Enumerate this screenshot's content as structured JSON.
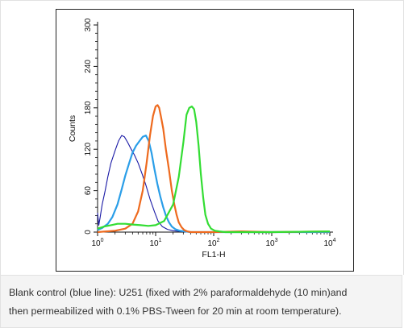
{
  "chart_data": {
    "type": "line",
    "xlabel": "FL1-H",
    "ylabel": "Counts",
    "xscale": "log",
    "xlim": [
      1,
      10000
    ],
    "ylim": [
      0,
      300
    ],
    "x_ticks": [
      {
        "base": "10",
        "exp": "0"
      },
      {
        "base": "10",
        "exp": "1"
      },
      {
        "base": "10",
        "exp": "2"
      },
      {
        "base": "10",
        "exp": "3"
      },
      {
        "base": "10",
        "exp": "4"
      }
    ],
    "y_ticks": [
      "0",
      "60",
      "120",
      "180",
      "240",
      "300"
    ],
    "y_tick_values": [
      0,
      60,
      120,
      180,
      240,
      300
    ],
    "grid": false,
    "series": [
      {
        "color": "#1a1aa6",
        "x": [
          1.0,
          1.05,
          1.1,
          1.2,
          1.35,
          1.5,
          1.7,
          2.0,
          2.3,
          2.6,
          2.9,
          3.3,
          3.8,
          4.3,
          5.0,
          5.8,
          6.8,
          8.0,
          9.5,
          11,
          13,
          16,
          20,
          26,
          35,
          50,
          80,
          150,
          1000,
          10000
        ],
        "y": [
          28,
          10,
          20,
          40,
          60,
          80,
          100,
          118,
          132,
          140,
          138,
          130,
          120,
          112,
          100,
          85,
          68,
          48,
          30,
          16,
          8,
          4,
          2,
          1,
          0,
          0,
          0,
          0,
          0,
          0
        ]
      },
      {
        "color": "#2a9ee8",
        "x": [
          1.0,
          1.2,
          1.5,
          1.8,
          2.2,
          2.6,
          3.0,
          3.5,
          4.0,
          4.6,
          5.3,
          6.0,
          6.8,
          7.6,
          8.5,
          9.5,
          10.7,
          12,
          13.5,
          15,
          17,
          19,
          22,
          26,
          32,
          40,
          60,
          100,
          1000,
          10000
        ],
        "y": [
          3,
          6,
          12,
          22,
          40,
          62,
          82,
          100,
          115,
          125,
          132,
          138,
          140,
          132,
          115,
          92,
          70,
          52,
          36,
          24,
          14,
          8,
          4,
          2,
          1,
          0,
          0,
          0,
          0,
          0
        ]
      },
      {
        "color": "#ee6a1e",
        "x": [
          1.0,
          2.0,
          3.0,
          4.0,
          5.0,
          6.0,
          7.0,
          8.0,
          9.0,
          10.0,
          10.8,
          11.5,
          12.3,
          13.5,
          15,
          17,
          19,
          21,
          23,
          25,
          28,
          31,
          35,
          40,
          50,
          70,
          100,
          300,
          1000,
          10000
        ],
        "y": [
          0,
          2,
          5,
          12,
          30,
          60,
          100,
          140,
          168,
          182,
          184,
          180,
          168,
          150,
          120,
          90,
          60,
          40,
          25,
          14,
          7,
          3,
          1,
          0,
          0,
          0,
          0,
          1,
          0,
          1
        ]
      },
      {
        "color": "#33dd33",
        "x": [
          1.0,
          1.3,
          1.7,
          2.2,
          3.0,
          4.0,
          5.5,
          7.5,
          10,
          14,
          20,
          25,
          30,
          34,
          38,
          42,
          46,
          50,
          55,
          60,
          66,
          72,
          80,
          90,
          105,
          125,
          160,
          250,
          1000,
          10000
        ],
        "y": [
          5,
          8,
          10,
          12,
          12,
          11,
          10,
          9,
          10,
          16,
          40,
          80,
          130,
          170,
          180,
          182,
          178,
          160,
          125,
          85,
          50,
          25,
          12,
          5,
          2,
          1,
          0,
          0,
          0,
          1
        ]
      }
    ],
    "annotations": []
  },
  "caption": {
    "line1": "Blank control (blue line): U251 (fixed with 2% paraformaldehyde (10 min)and",
    "line2": "then permeabilized with 0.1% PBS-Tween for 20 min at room temperature)."
  }
}
